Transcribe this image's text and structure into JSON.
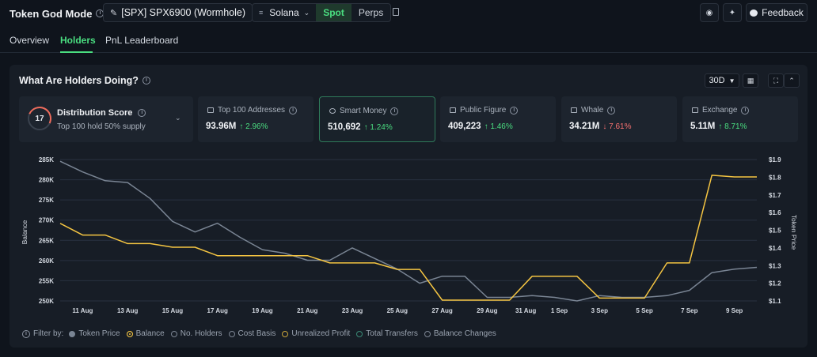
{
  "header": {
    "title": "Token God Mode",
    "token_label": "[SPX] SPX6900 (Wormhole)",
    "chain": "Solana",
    "segments": [
      "Spot",
      "Perps"
    ],
    "active_segment": "Spot",
    "feedback_label": "Feedback"
  },
  "tabs": [
    "Overview",
    "Holders",
    "PnL Leaderboard"
  ],
  "active_tab": "Holders",
  "panel": {
    "title": "What Are Holders Doing?",
    "range": "30D"
  },
  "distribution": {
    "score": "17",
    "title": "Distribution Score",
    "subtitle": "Top 100 hold 50% supply"
  },
  "cards": [
    {
      "label": "Top 100 Addresses",
      "value": "93.96M",
      "change": "↑ 2.96%",
      "direction": "up"
    },
    {
      "label": "Smart Money",
      "value": "510,692",
      "change": "↑ 1.24%",
      "direction": "up"
    },
    {
      "label": "Public Figure",
      "value": "409,223",
      "change": "↑ 1.46%",
      "direction": "up"
    },
    {
      "label": "Whale",
      "value": "34.21M",
      "change": "↓ 7.61%",
      "direction": "down"
    },
    {
      "label": "Exchange",
      "value": "5.11M",
      "change": "↑ 8.71%",
      "direction": "up"
    }
  ],
  "chart_data": {
    "type": "line",
    "ylabel": "Balance",
    "y2label": "Token Price",
    "ylim": [
      250000,
      285000
    ],
    "y2lim": [
      1.1,
      1.9
    ],
    "yticks": [
      "285K",
      "280K",
      "275K",
      "270K",
      "265K",
      "260K",
      "255K",
      "250K"
    ],
    "y2ticks": [
      "$1.9",
      "$1.8",
      "$1.7",
      "$1.6",
      "$1.5",
      "$1.4",
      "$1.3",
      "$1.2",
      "$1.1"
    ],
    "xticks": [
      "11 Aug",
      "13 Aug",
      "15 Aug",
      "17 Aug",
      "19 Aug",
      "21 Aug",
      "23 Aug",
      "25 Aug",
      "27 Aug",
      "29 Aug",
      "31 Aug",
      "1 Sep",
      "3 Sep",
      "5 Sep",
      "7 Sep",
      "9 Sep"
    ],
    "x": [
      "10 Aug",
      "11 Aug",
      "12 Aug",
      "13 Aug",
      "14 Aug",
      "15 Aug",
      "16 Aug",
      "17 Aug",
      "18 Aug",
      "19 Aug",
      "20 Aug",
      "21 Aug",
      "22 Aug",
      "23 Aug",
      "24 Aug",
      "25 Aug",
      "26 Aug",
      "27 Aug",
      "28 Aug",
      "29 Aug",
      "30 Aug",
      "31 Aug",
      "1 Sep",
      "2 Sep",
      "3 Sep",
      "4 Sep",
      "5 Sep",
      "6 Sep",
      "7 Sep",
      "8 Sep",
      "9 Sep",
      "10 Sep"
    ],
    "series": [
      {
        "name": "Token Price",
        "axis": "right",
        "color": "#7a8594",
        "values": [
          1.89,
          1.83,
          1.78,
          1.77,
          1.68,
          1.55,
          1.49,
          1.54,
          1.46,
          1.39,
          1.37,
          1.33,
          1.33,
          1.4,
          1.34,
          1.28,
          1.2,
          1.24,
          1.24,
          1.12,
          1.12,
          1.13,
          1.12,
          1.1,
          1.13,
          1.12,
          1.12,
          1.13,
          1.16,
          1.26,
          1.28,
          1.29
        ]
      },
      {
        "name": "Balance",
        "axis": "left",
        "color": "#f5c542",
        "values": [
          269200,
          266300,
          266300,
          264200,
          264200,
          263300,
          263300,
          261200,
          261200,
          261200,
          261200,
          261200,
          259400,
          259400,
          259400,
          257800,
          257800,
          250200,
          250200,
          250200,
          250200,
          256100,
          256100,
          256100,
          250700,
          250700,
          250700,
          259400,
          259400,
          281100,
          280700,
          280700
        ]
      }
    ]
  },
  "filter": {
    "label": "Filter by:",
    "options": [
      {
        "label": "Token Price",
        "color": "#7a8594",
        "filled": true
      },
      {
        "label": "Balance",
        "color": "#f5c542",
        "filled": true
      },
      {
        "label": "No. Holders",
        "color": "#7c8593",
        "filled": false
      },
      {
        "label": "Cost Basis",
        "color": "#7c8593",
        "filled": false
      },
      {
        "label": "Unrealized Profit",
        "color": "#c9a53a",
        "filled": false
      },
      {
        "label": "Total Transfers",
        "color": "#3a8a76",
        "filled": false
      },
      {
        "label": "Balance Changes",
        "color": "#7c8593",
        "filled": false
      }
    ]
  }
}
